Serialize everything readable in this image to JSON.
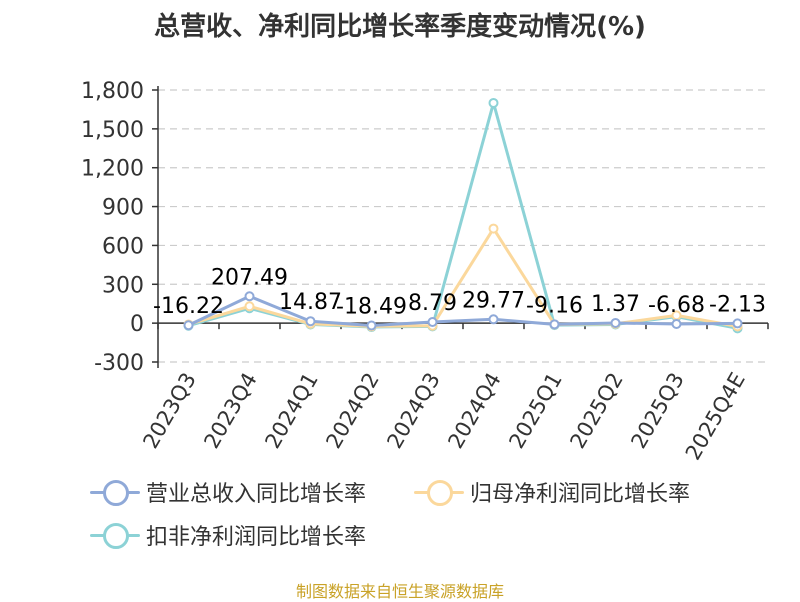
{
  "title": "总营收、净利同比增长率季度变动情况(%)",
  "source": "制图数据来自恒生聚源数据库",
  "colors": {
    "revenue": "#8fa9d8",
    "net_profit": "#fbd89c",
    "deducted": "#8cd2d6",
    "axis": "#333333",
    "grid": "#cccccc",
    "text": "#333333",
    "source": "#c9a227"
  },
  "chart_data": {
    "type": "line",
    "title": "总营收、净利同比增长率季度变动情况(%)",
    "categories": [
      "2023Q3",
      "2023Q4",
      "2024Q1",
      "2024Q2",
      "2024Q3",
      "2024Q4",
      "2025Q1",
      "2025Q2",
      "2025Q3",
      "2025Q4E"
    ],
    "ylim": [
      -300,
      1800
    ],
    "yticks": [
      -300,
      0,
      300,
      600,
      900,
      1200,
      1500,
      1800
    ],
    "ytick_labels": [
      "-300",
      "0",
      "300",
      "600",
      "900",
      "1,200",
      "1,500",
      "1,800"
    ],
    "grid": true,
    "legend_position": "bottom",
    "series": [
      {
        "name": "营业总收入同比增长率",
        "values": [
          -16.22,
          207.49,
          14.87,
          -18.49,
          8.79,
          29.77,
          -9.16,
          1.37,
          -6.68,
          -2.13
        ],
        "labels": [
          "-16.22",
          "207.49",
          "14.87",
          "-18.49",
          "8.79",
          "29.77",
          "-9.16",
          "1.37",
          "-6.68",
          "-2.13"
        ]
      },
      {
        "name": "归母净利润同比增长率",
        "values": [
          -10,
          130,
          -5,
          -25,
          -20,
          730,
          -10,
          -5,
          60,
          -25
        ]
      },
      {
        "name": "扣非净利润同比增长率",
        "values": [
          -20,
          115,
          -10,
          -30,
          -25,
          1700,
          -15,
          -10,
          50,
          -40
        ]
      }
    ]
  }
}
